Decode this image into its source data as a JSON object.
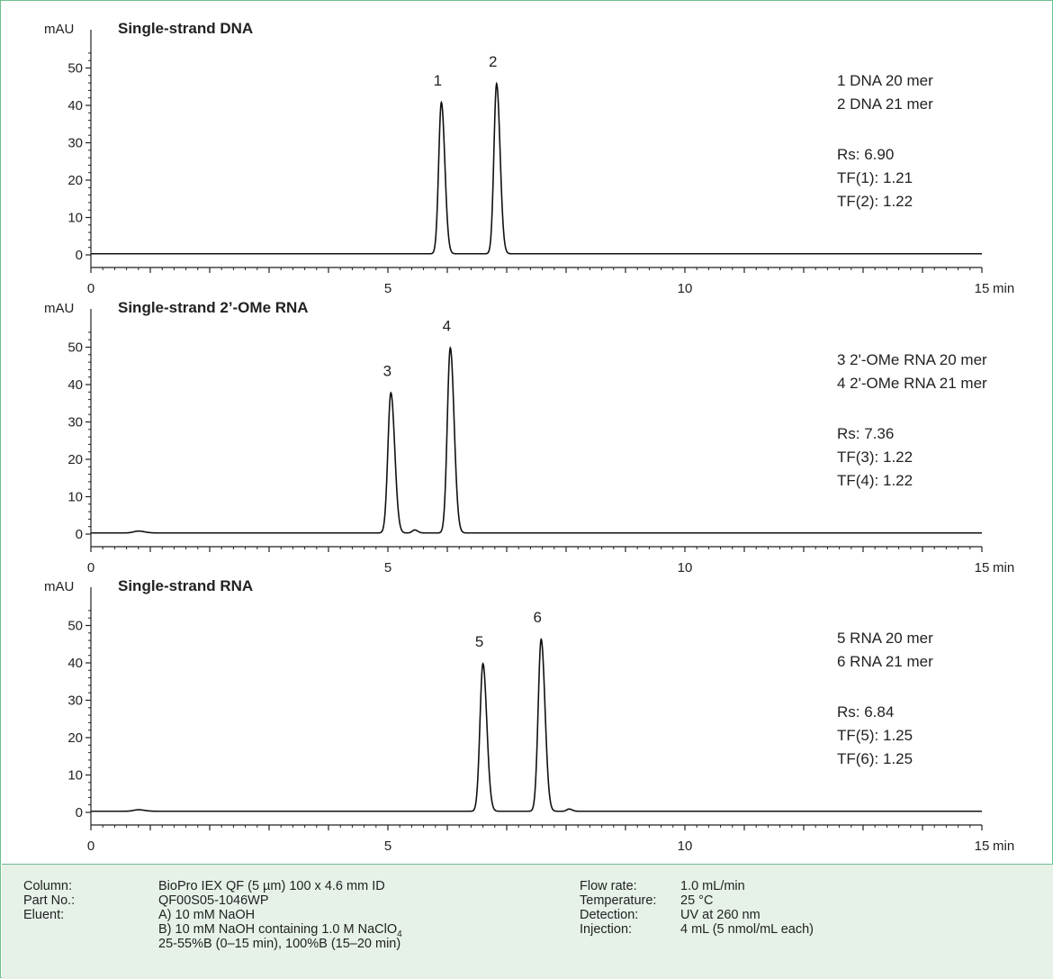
{
  "chart_data": [
    {
      "type": "line",
      "title": "Single-strand DNA",
      "ylabel": "mAU",
      "xlabel": "min",
      "xlim": [
        0,
        15
      ],
      "ylim": [
        0,
        50
      ],
      "xticks": [
        "0",
        "5",
        "10",
        "15"
      ],
      "yticks": [
        "0",
        "10",
        "20",
        "30",
        "40",
        "50"
      ],
      "baseline": 0.3,
      "peaks": [
        {
          "label": "1",
          "x": 5.9,
          "y": 40.5,
          "sigma": 0.045
        },
        {
          "label": "2",
          "x": 6.83,
          "y": 45.5,
          "sigma": 0.045
        }
      ],
      "minor_features": [],
      "legend": [
        "1 DNA 20 mer",
        "2 DNA 21 mer"
      ],
      "stats": [
        "Rs: 6.90",
        "TF(1): 1.21",
        "TF(2): 1.22"
      ]
    },
    {
      "type": "line",
      "title": "Single-strand 2’-OMe RNA",
      "ylabel": "mAU",
      "xlabel": "min",
      "xlim": [
        0,
        15
      ],
      "ylim": [
        0,
        50
      ],
      "xticks": [
        "0",
        "5",
        "10",
        "15"
      ],
      "yticks": [
        "0",
        "10",
        "20",
        "30",
        "40",
        "50"
      ],
      "baseline": 0.3,
      "peaks": [
        {
          "label": "3",
          "x": 5.05,
          "y": 37.5,
          "sigma": 0.05
        },
        {
          "label": "4",
          "x": 6.05,
          "y": 49.5,
          "sigma": 0.05
        }
      ],
      "minor_features": [
        {
          "x": 0.8,
          "y": 0.5,
          "sigma": 0.08
        },
        {
          "x": 5.45,
          "y": 0.8,
          "sigma": 0.04
        }
      ],
      "legend": [
        "3 2'-OMe RNA 20 mer",
        "4 2'-OMe RNA 21 mer"
      ],
      "stats": [
        "Rs: 7.36",
        "TF(3): 1.22",
        "TF(4): 1.22"
      ]
    },
    {
      "type": "line",
      "title": "Single-strand RNA",
      "ylabel": "mAU",
      "xlabel": "min",
      "xlim": [
        0,
        15
      ],
      "ylim": [
        0,
        50
      ],
      "xticks": [
        "0",
        "5",
        "10",
        "15"
      ],
      "yticks": [
        "0",
        "10",
        "20",
        "30",
        "40",
        "50"
      ],
      "baseline": 0.3,
      "peaks": [
        {
          "label": "5",
          "x": 6.6,
          "y": 39.5,
          "sigma": 0.05
        },
        {
          "label": "6",
          "x": 7.58,
          "y": 46,
          "sigma": 0.05
        }
      ],
      "minor_features": [
        {
          "x": 0.8,
          "y": 0.4,
          "sigma": 0.08
        },
        {
          "x": 8.05,
          "y": 0.6,
          "sigma": 0.04
        }
      ],
      "legend": [
        "5 RNA 20 mer",
        "6 RNA 21 mer"
      ],
      "stats": [
        "Rs: 6.84",
        "TF(5): 1.25",
        "TF(6): 1.25"
      ]
    }
  ],
  "conditions": {
    "left_labels": [
      "Column:",
      "Part No.:",
      "Eluent:"
    ],
    "left_values": [
      "BioPro IEX QF (5 µm) 100 x 4.6 mm ID",
      "QF00S05-1046WP",
      "A) 10 mM NaOH",
      "B) 10 mM NaOH containing 1.0 M NaClO",
      "25-55%B (0–15 min), 100%B (15–20 min)"
    ],
    "subscript": "4",
    "right_labels": [
      "Flow rate:",
      "Temperature:",
      "Detection:",
      "Injection:"
    ],
    "right_values": [
      "1.0 mL/min",
      "25 °C",
      "UV at 260 nm",
      "4 mL (5 nmol/mL each)"
    ]
  }
}
